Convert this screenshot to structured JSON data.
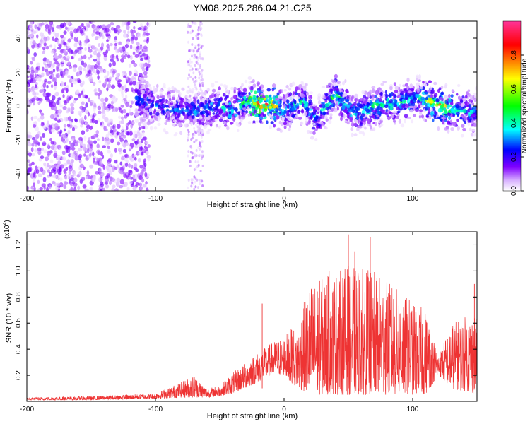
{
  "title": "YM08.2025.286.04.21.C25",
  "chart_data": [
    {
      "type": "heatmap",
      "xlabel": "Height of straight line (km)",
      "ylabel": "Frequency (Hz)",
      "xlim": [
        -200,
        150
      ],
      "ylim": [
        -50,
        50
      ],
      "xticks": [
        -200,
        -100,
        0,
        100
      ],
      "xtick_labels": [
        "-200",
        "-100",
        "0",
        "100"
      ],
      "yticks": [
        -40,
        -20,
        0,
        20,
        40
      ],
      "ytick_labels": [
        "-40",
        "-20",
        "0",
        "20",
        "40"
      ],
      "colorbar": {
        "label": "Normalized spectral amplitude",
        "range": [
          0,
          1
        ],
        "ticks": [
          0,
          0.2,
          0.4,
          0.6,
          0.8
        ],
        "tick_labels": [
          "0.0",
          "0.2",
          "0.4",
          "0.6",
          "0.8"
        ],
        "colors": [
          "#ffffff",
          "#d9b3ff",
          "#8000ff",
          "#0000ff",
          "#00ffff",
          "#00ff00",
          "#ffff00",
          "#ff8000",
          "#ff0000",
          "#ff3399"
        ]
      },
      "ridge": [
        {
          "x": -110,
          "f": 3,
          "amp": 0.35
        },
        {
          "x": -90,
          "f": -2,
          "amp": 0.3
        },
        {
          "x": -70,
          "f": -3,
          "amp": 0.35
        },
        {
          "x": -50,
          "f": 0,
          "amp": 0.4
        },
        {
          "x": -40,
          "f": -3,
          "amp": 0.45
        },
        {
          "x": -30,
          "f": 3,
          "amp": 0.55
        },
        {
          "x": -20,
          "f": 1,
          "amp": 0.95
        },
        {
          "x": -10,
          "f": 1,
          "amp": 0.85
        },
        {
          "x": 0,
          "f": -3,
          "amp": 0.45
        },
        {
          "x": 15,
          "f": 3,
          "amp": 0.45
        },
        {
          "x": 25,
          "f": -8,
          "amp": 0.35
        },
        {
          "x": 40,
          "f": 8,
          "amp": 0.5
        },
        {
          "x": 55,
          "f": -5,
          "amp": 0.4
        },
        {
          "x": 70,
          "f": 0,
          "amp": 0.5
        },
        {
          "x": 90,
          "f": 2,
          "amp": 0.45
        },
        {
          "x": 105,
          "f": 5,
          "amp": 0.45
        },
        {
          "x": 120,
          "f": 0,
          "amp": 0.9
        },
        {
          "x": 135,
          "f": -2,
          "amp": 0.45
        },
        {
          "x": 150,
          "f": -4,
          "amp": 0.35
        }
      ]
    },
    {
      "type": "line",
      "xlabel": "Height of straight line (km)",
      "ylabel": "SNR (10 * v/v)",
      "multiplier": "(x10",
      "multiplier_exp": "4",
      "multiplier_close": ")",
      "xlim": [
        -200,
        150
      ],
      "ylim": [
        0,
        1.3
      ],
      "xticks": [
        -200,
        -100,
        0,
        100
      ],
      "xtick_labels": [
        "-200",
        "-100",
        "0",
        "100"
      ],
      "yticks": [
        0.2,
        0.4,
        0.6,
        0.8,
        1.0,
        1.2
      ],
      "ytick_labels": [
        "0.2",
        "0.4",
        "0.6",
        "0.8",
        "1.0",
        "1.2"
      ],
      "color": "#ee3333",
      "envelope": [
        {
          "x": -200,
          "base": 0.01,
          "peak": 0.03
        },
        {
          "x": -150,
          "base": 0.01,
          "peak": 0.04
        },
        {
          "x": -100,
          "base": 0.02,
          "peak": 0.06
        },
        {
          "x": -80,
          "base": 0.03,
          "peak": 0.15
        },
        {
          "x": -70,
          "base": 0.03,
          "peak": 0.2
        },
        {
          "x": -60,
          "base": 0.03,
          "peak": 0.1
        },
        {
          "x": -50,
          "base": 0.04,
          "peak": 0.12
        },
        {
          "x": -40,
          "base": 0.06,
          "peak": 0.22
        },
        {
          "x": -30,
          "base": 0.1,
          "peak": 0.3
        },
        {
          "x": -20,
          "base": 0.15,
          "peak": 0.38
        },
        {
          "x": -10,
          "base": 0.2,
          "peak": 0.45
        },
        {
          "x": 0,
          "base": 0.2,
          "peak": 0.5
        },
        {
          "x": 10,
          "base": 0.1,
          "peak": 0.6
        },
        {
          "x": 20,
          "base": 0.05,
          "peak": 0.9
        },
        {
          "x": 40,
          "base": 0.05,
          "peak": 1.0
        },
        {
          "x": 50,
          "base": 0.05,
          "peak": 1.05
        },
        {
          "x": 70,
          "base": 0.05,
          "peak": 1.0
        },
        {
          "x": 90,
          "base": 0.05,
          "peak": 0.85
        },
        {
          "x": 110,
          "base": 0.05,
          "peak": 0.7
        },
        {
          "x": 120,
          "base": 0.2,
          "peak": 0.35
        },
        {
          "x": 130,
          "base": 0.1,
          "peak": 0.6
        },
        {
          "x": 150,
          "base": 0.05,
          "peak": 0.7
        }
      ],
      "spikes": [
        {
          "x": 50,
          "y": 1.28
        },
        {
          "x": 67,
          "y": 1.26
        },
        {
          "x": 55,
          "y": 1.15
        },
        {
          "x": 35,
          "y": 1.0
        },
        {
          "x": -17,
          "y": 0.75
        },
        {
          "x": 148,
          "y": 0.9
        }
      ]
    }
  ]
}
